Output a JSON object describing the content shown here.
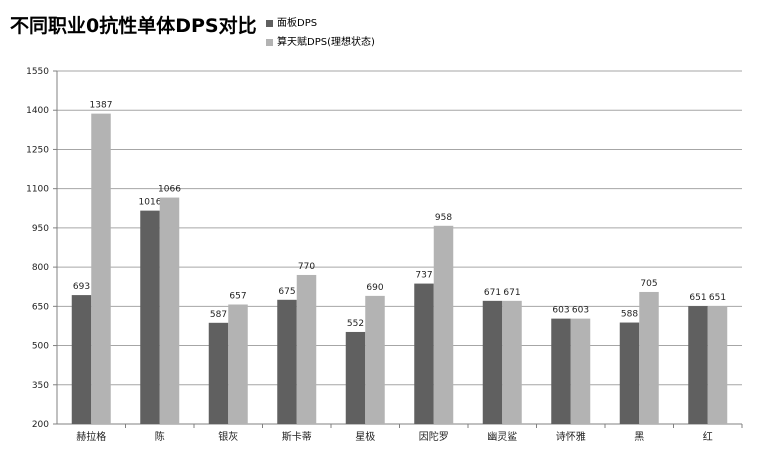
{
  "chart_data": {
    "type": "bar",
    "title": "不同职业0抗性单体DPS对比",
    "categories": [
      "赫拉格",
      "陈",
      "银灰",
      "斯卡蒂",
      "星极",
      "因陀罗",
      "幽灵鲨",
      "诗怀雅",
      "黑",
      "红"
    ],
    "series": [
      {
        "name": "面板DPS",
        "color": "#606060",
        "values": [
          693,
          1016,
          587,
          675,
          552,
          737,
          671,
          603,
          588,
          651
        ]
      },
      {
        "name": "算天赋DPS(理想状态)",
        "color": "#b3b3b3",
        "values": [
          1387,
          1066,
          657,
          770,
          690,
          958,
          671,
          603,
          705,
          651
        ]
      }
    ],
    "y_ticks": [
      200,
      350,
      500,
      650,
      800,
      950,
      1100,
      1250,
      1400,
      1550
    ],
    "ylim": [
      200,
      1550
    ],
    "grid": true,
    "legend_position": "top"
  }
}
